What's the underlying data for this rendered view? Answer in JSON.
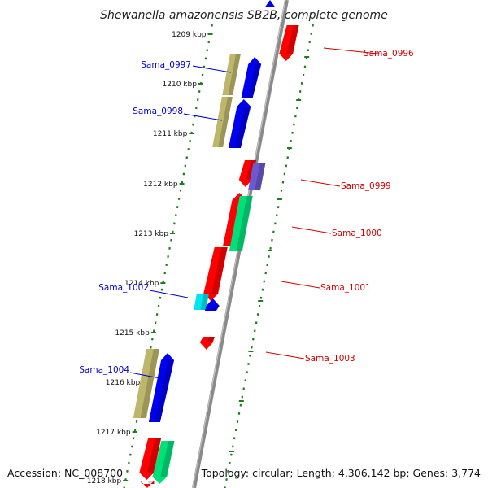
{
  "title": "Shewanella amazonensis SB2B, complete genome",
  "footer": {
    "accession": "Accession: NC_008700",
    "topology": "Topology: circular; Length: 4,306,142 bp; Genes: 3,774"
  },
  "colors": {
    "backbone": "#8a8a8a",
    "tick": "#1e7d1e",
    "plus_strand_label": "#d40000",
    "minus_strand_label": "#0000cc",
    "gene_red": "#ff0000",
    "gene_blue": "#0000ee",
    "gene_khaki": "#bdb76b",
    "gene_green": "#00e07a",
    "gene_purple": "#6a5acd",
    "gene_cyan": "#00e5ee"
  },
  "kbp_labels": [
    "1209 kbp",
    "1210 kbp",
    "1211 kbp",
    "1212 kbp",
    "1213 kbp",
    "1214 kbp",
    "1215 kbp",
    "1216 kbp",
    "1217 kbp",
    "1218 kbp"
  ],
  "gene_labels": [
    {
      "text": "Sama_0996",
      "strand": "plus"
    },
    {
      "text": "Sama_0997",
      "strand": "minus"
    },
    {
      "text": "Sama_0998",
      "strand": "minus"
    },
    {
      "text": "Sama_0999",
      "strand": "plus"
    },
    {
      "text": "Sama_1000",
      "strand": "plus"
    },
    {
      "text": "Sama_1001",
      "strand": "plus"
    },
    {
      "text": "Sama_1002",
      "strand": "minus"
    },
    {
      "text": "Sama_1003",
      "strand": "plus"
    },
    {
      "text": "Sama_1004",
      "strand": "minus"
    }
  ],
  "genes": [
    {
      "color": "gene_blue",
      "dir": "up"
    },
    {
      "color": "gene_red",
      "dir": "down"
    },
    {
      "color": "gene_khaki",
      "dir": "none"
    },
    {
      "color": "gene_blue",
      "dir": "up"
    },
    {
      "color": "gene_khaki",
      "dir": "none"
    },
    {
      "color": "gene_blue",
      "dir": "up"
    },
    {
      "color": "gene_red",
      "dir": "down"
    },
    {
      "color": "gene_purple",
      "dir": "none"
    },
    {
      "color": "gene_red",
      "dir": "up"
    },
    {
      "color": "gene_green",
      "dir": "none"
    },
    {
      "color": "gene_red",
      "dir": "down"
    },
    {
      "color": "gene_cyan",
      "dir": "none"
    },
    {
      "color": "gene_blue",
      "dir": "up"
    },
    {
      "color": "gene_red",
      "dir": "down"
    },
    {
      "color": "gene_khaki",
      "dir": "none"
    },
    {
      "color": "gene_blue",
      "dir": "up"
    },
    {
      "color": "gene_red",
      "dir": "down"
    },
    {
      "color": "gene_green",
      "dir": "down"
    },
    {
      "color": "gene_red",
      "dir": "down"
    }
  ]
}
